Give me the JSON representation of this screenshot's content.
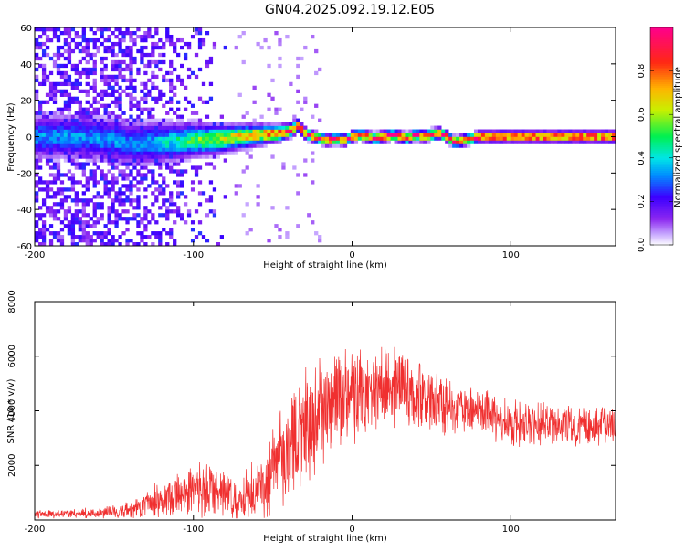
{
  "title": "GN04.2025.092.19.12.E05",
  "chart_data": [
    {
      "type": "heatmap",
      "xlabel": "Height of straight line (km)",
      "ylabel": "Frequency (Hz)",
      "xlim": [
        -200,
        166
      ],
      "ylim": [
        -60,
        60
      ],
      "xticks": [
        -200,
        -100,
        0,
        100
      ],
      "yticks": [
        -60,
        -40,
        -20,
        0,
        20,
        40,
        60
      ],
      "colorbar": {
        "label": "Normalized spectral amplitude",
        "range": [
          0,
          1
        ],
        "ticks": [
          0.0,
          0.2,
          0.4,
          0.6,
          0.8
        ]
      },
      "ridge_frequency": {
        "x": [
          -200,
          -170,
          -150,
          -140,
          -120,
          -100,
          -80,
          -60,
          -45,
          -38,
          -34,
          -30,
          -25,
          -20,
          -15,
          -10,
          -5,
          0,
          5,
          10,
          15,
          20,
          25,
          30,
          35,
          40,
          45,
          50,
          55,
          60,
          65,
          70,
          75,
          80,
          90,
          100,
          110,
          120,
          130,
          140,
          150,
          160,
          166
        ],
        "y": [
          0,
          0,
          -2,
          -4,
          -3,
          -2,
          -1,
          1,
          2,
          4,
          6,
          2,
          0,
          -1,
          -2,
          -1,
          -2,
          0,
          1,
          0,
          -1,
          0,
          1,
          0,
          -1,
          1,
          0,
          1,
          2,
          0,
          -3,
          -2,
          -1,
          0,
          0,
          0,
          0,
          0,
          0,
          0,
          0,
          0,
          0
        ]
      }
    },
    {
      "type": "line",
      "xlabel": "Height of straight line (km)",
      "ylabel": "SNR (10 * v/v)",
      "xlim": [
        -200,
        166
      ],
      "ylim": [
        0,
        8000
      ],
      "xticks": [
        -200,
        -100,
        0,
        100
      ],
      "yticks": [
        2000,
        4000,
        6000,
        8000
      ],
      "color": "#f03030",
      "envelope": {
        "x": [
          -200,
          -160,
          -140,
          -130,
          -115,
          -100,
          -90,
          -80,
          -70,
          -60,
          -50,
          -40,
          -30,
          -20,
          -10,
          0,
          10,
          20,
          30,
          40,
          60,
          80,
          100,
          120,
          140,
          166
        ],
        "mean": [
          200,
          250,
          350,
          600,
          900,
          1100,
          1200,
          900,
          700,
          1200,
          1800,
          2500,
          3300,
          4000,
          4300,
          4500,
          4700,
          4900,
          4900,
          4600,
          4200,
          3900,
          3600,
          3500,
          3400,
          3500
        ],
        "amplitude": [
          150,
          200,
          300,
          500,
          800,
          1000,
          1100,
          900,
          800,
          1300,
          1700,
          2000,
          2200,
          2000,
          1800,
          1800,
          1800,
          1600,
          1400,
          1300,
          1100,
          1000,
          900,
          800,
          800,
          800
        ]
      }
    }
  ]
}
